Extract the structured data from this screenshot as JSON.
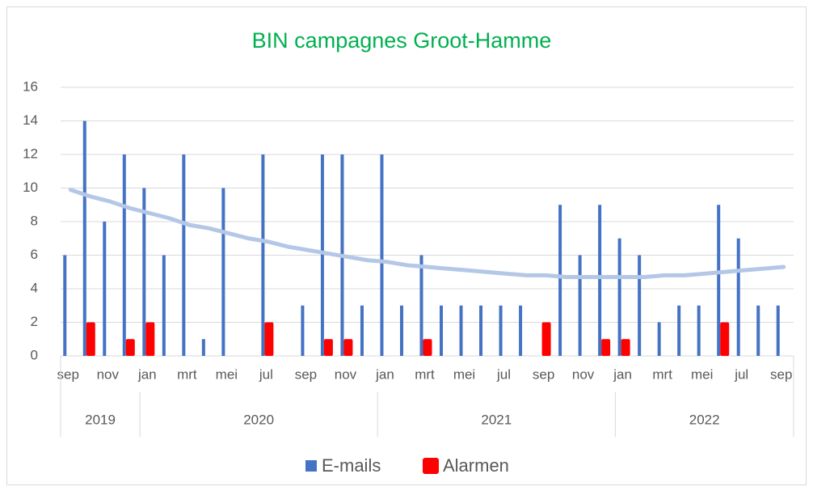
{
  "chart_data": {
    "type": "bar",
    "title": "BIN campagnes Groot-Hamme",
    "categories": [
      "sep",
      null,
      "nov",
      null,
      "jan",
      null,
      "mrt",
      null,
      "mei",
      null,
      "jul",
      null,
      "sep",
      null,
      "nov",
      null,
      "jan",
      null,
      "mrt",
      null,
      "mei",
      null,
      "jul",
      null,
      "sep",
      null,
      "nov",
      null,
      "jan",
      null,
      "mrt",
      null,
      "mei",
      null,
      "jul",
      null,
      "sep"
    ],
    "x_groups": [
      {
        "label": "2019",
        "categories": 4
      },
      {
        "label": "2020",
        "categories": 12
      },
      {
        "label": "2021",
        "categories": 12
      },
      {
        "label": "2022",
        "categories": 9
      }
    ],
    "series": [
      {
        "name": "E-mails",
        "color": "#4472c4",
        "values": [
          6,
          14,
          8,
          12,
          10,
          6,
          12,
          1,
          10,
          0,
          12,
          0,
          3,
          12,
          12,
          3,
          12,
          3,
          6,
          3,
          3,
          3,
          3,
          3,
          0,
          9,
          6,
          9,
          7,
          6,
          2,
          3,
          3,
          9,
          7,
          3,
          3
        ]
      },
      {
        "name": "Alarmen",
        "color": "#ff0000",
        "values": [
          0,
          2,
          0,
          1,
          2,
          0,
          0,
          0,
          0,
          0,
          2,
          0,
          0,
          1,
          1,
          0,
          0,
          0,
          1,
          0,
          0,
          0,
          0,
          0,
          2,
          0,
          0,
          1,
          1,
          0,
          0,
          0,
          0,
          2,
          0,
          0,
          0
        ]
      }
    ],
    "trendline": {
      "color": "#b4c7e7",
      "values": [
        9.9,
        9.5,
        9.2,
        8.8,
        8.5,
        8.2,
        7.8,
        7.6,
        7.3,
        7.0,
        6.8,
        6.5,
        6.3,
        6.1,
        5.9,
        5.7,
        5.6,
        5.4,
        5.3,
        5.2,
        5.1,
        5.0,
        4.9,
        4.8,
        4.8,
        4.7,
        4.7,
        4.7,
        4.7,
        4.7,
        4.8,
        4.8,
        4.9,
        5.0,
        5.1,
        5.2,
        5.3
      ]
    },
    "ylim": [
      0,
      16
    ],
    "yticks": [
      0,
      2,
      4,
      6,
      8,
      10,
      12,
      14,
      16
    ],
    "grid": true,
    "legend": "bottom"
  }
}
